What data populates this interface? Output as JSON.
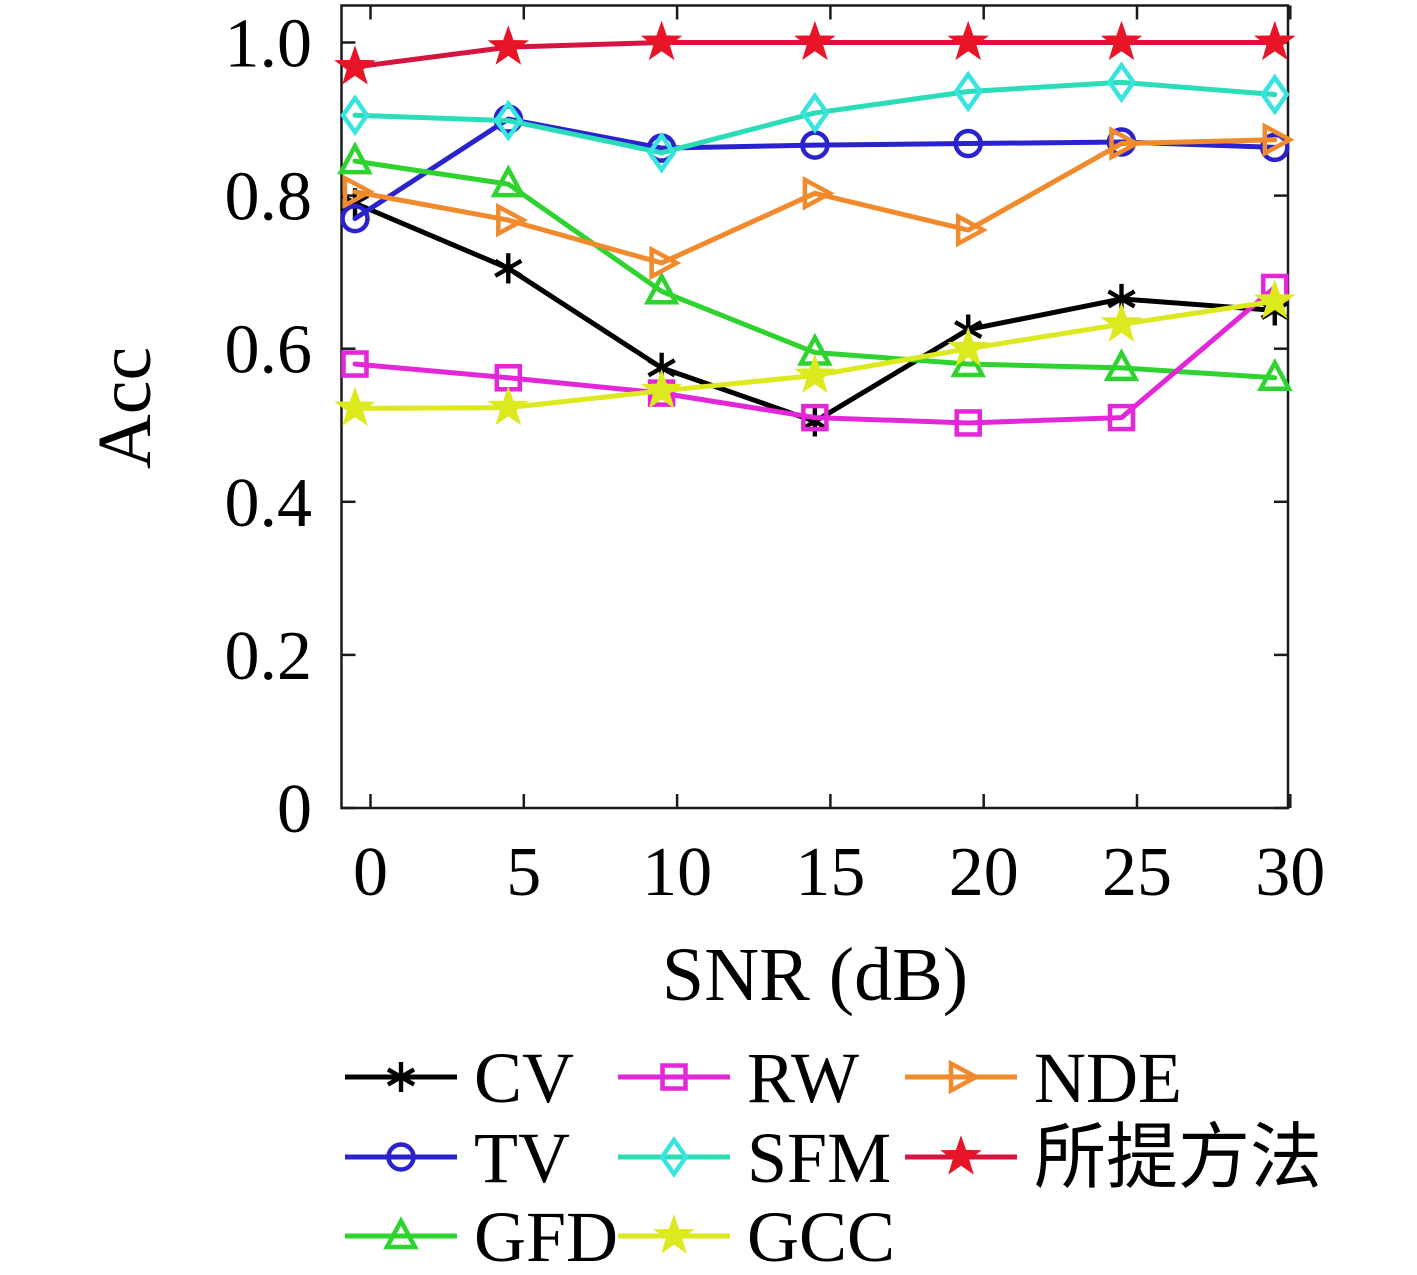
{
  "chart_data": {
    "type": "line",
    "title": "",
    "xlabel": "SNR (dB)",
    "ylabel": "Acc",
    "x": [
      0,
      5,
      10,
      15,
      20,
      25,
      30
    ],
    "xticks": [
      0,
      5,
      10,
      15,
      20,
      25,
      30
    ],
    "xtick_labels": [
      "0",
      "5",
      "10",
      "15",
      "20",
      "25",
      "30"
    ],
    "yticks": [
      0,
      0.2,
      0.4,
      0.6,
      0.8,
      1.0
    ],
    "ytick_labels": [
      "0",
      "0.2",
      "0.4",
      "0.6",
      "0.8",
      "1.0"
    ],
    "xlim": [
      -1,
      30.9
    ],
    "ylim": [
      0,
      1.05
    ],
    "grid": false,
    "box": true,
    "legend_position": "below-plot, 3 columns, no frame",
    "series": [
      {
        "name": "CV",
        "color": "#000000",
        "marker_color": "#000000",
        "marker": "asterisk",
        "filled": false,
        "values": [
          0.79,
          0.705,
          0.575,
          0.505,
          0.625,
          0.665,
          0.65
        ]
      },
      {
        "name": "TV",
        "color": "#2a22cc",
        "marker_color": "#2a22cc",
        "marker": "circle",
        "filled": false,
        "values": [
          0.77,
          0.9,
          0.862,
          0.866,
          0.868,
          0.87,
          0.863
        ]
      },
      {
        "name": "GFD",
        "color": "#2fd32f",
        "marker_color": "#2fd32f",
        "marker": "triangle-up",
        "filled": false,
        "values": [
          0.845,
          0.815,
          0.675,
          0.595,
          0.58,
          0.575,
          0.562
        ]
      },
      {
        "name": "RW",
        "color": "#e226d8",
        "marker_color": "#e226d8",
        "marker": "square",
        "filled": false,
        "values": [
          0.58,
          0.562,
          0.542,
          0.51,
          0.503,
          0.51,
          0.68
        ]
      },
      {
        "name": "SFM",
        "color": "#2bdcb9",
        "marker_color": "#38e4e0",
        "marker": "diamond",
        "filled": false,
        "values": [
          0.905,
          0.898,
          0.856,
          0.908,
          0.936,
          0.948,
          0.932
        ]
      },
      {
        "name": "GCC",
        "color": "#dde91f",
        "marker_color": "#dde91f",
        "marker": "star",
        "filled": true,
        "values": [
          0.522,
          0.523,
          0.545,
          0.565,
          0.6,
          0.632,
          0.662
        ]
      },
      {
        "name": "NDE",
        "color": "#f08a2c",
        "marker_color": "#f08a2c",
        "marker": "triangle-right",
        "filled": false,
        "values": [
          0.805,
          0.768,
          0.712,
          0.803,
          0.755,
          0.868,
          0.873
        ]
      },
      {
        "name": "所提方法",
        "color": "#d6143f",
        "marker_color": "#e81428",
        "marker": "star",
        "filled": true,
        "values": [
          0.968,
          0.994,
          1.0,
          1.0,
          1.0,
          1.0,
          1.0
        ]
      }
    ],
    "legend": {
      "rows": [
        [
          "CV",
          "RW",
          "NDE"
        ],
        [
          "TV",
          "SFM",
          "所提方法"
        ],
        [
          "GFD",
          "GCC"
        ]
      ]
    }
  }
}
